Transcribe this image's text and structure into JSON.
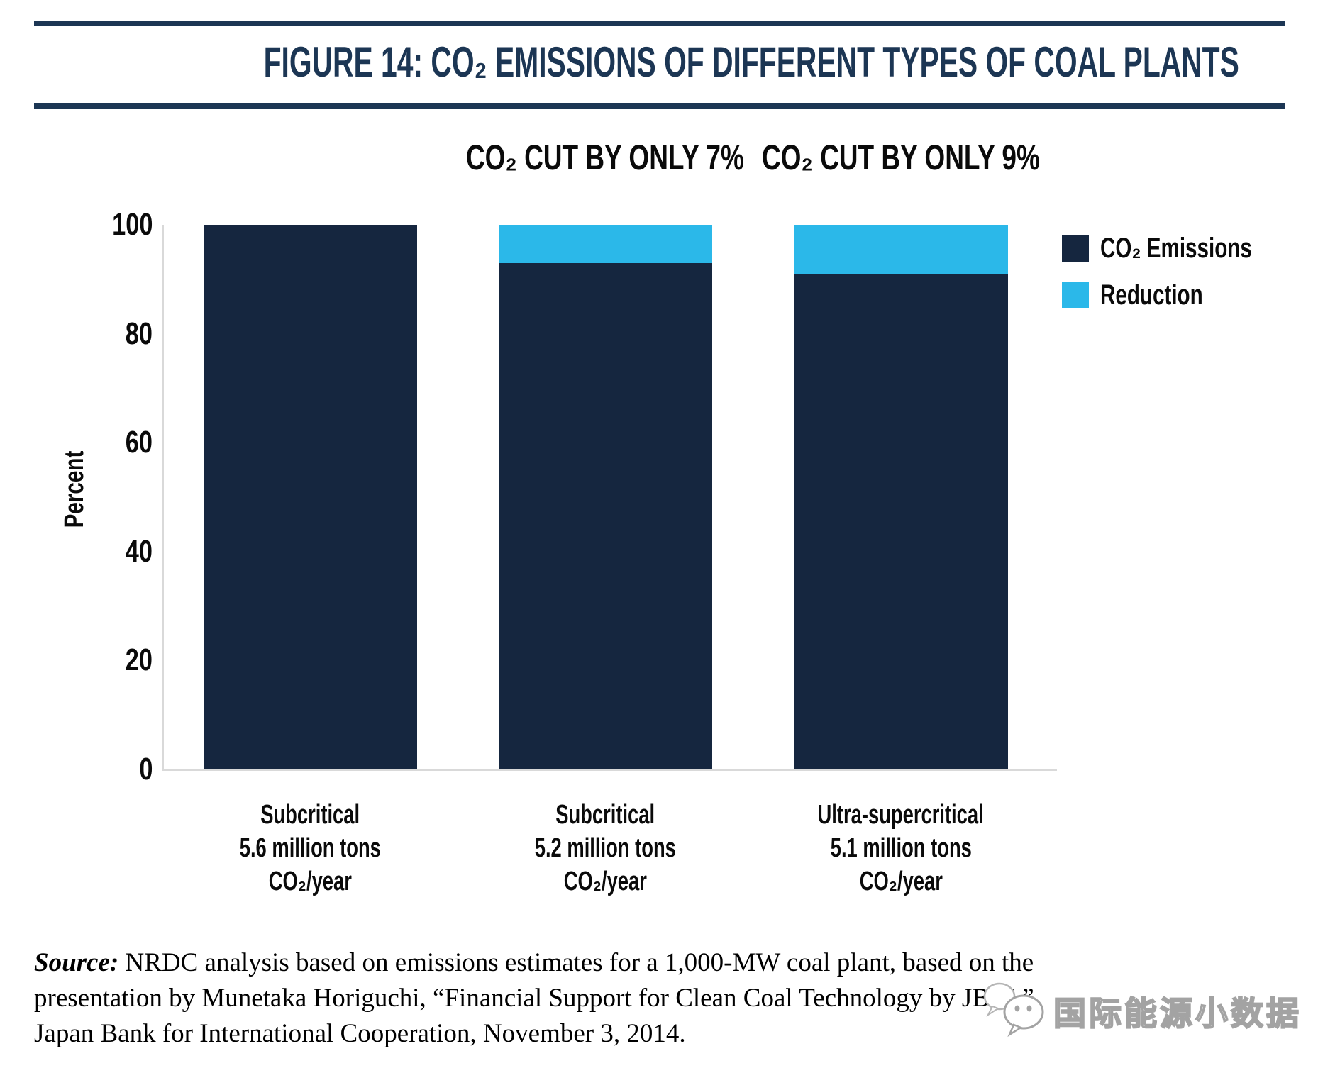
{
  "chart_data": {
    "type": "bar",
    "stacked": true,
    "title": "FIGURE 14: CO₂ EMISSIONS OF DIFFERENT TYPES OF COAL PLANTS",
    "ylabel": "Percent",
    "ylim": [
      0,
      100
    ],
    "yticks": [
      0,
      20,
      40,
      60,
      80,
      100
    ],
    "grid": false,
    "legend_position": "right",
    "categories": [
      [
        "Subcritical",
        "5.6 million tons",
        "CO₂/year"
      ],
      [
        "Subcritical",
        "5.2 million tons",
        "CO₂/year"
      ],
      [
        "Ultra-supercritical",
        "5.1 million tons",
        "CO₂/year"
      ]
    ],
    "series": [
      {
        "name": "CO₂ Emissions",
        "color": "#15263F",
        "values": [
          100,
          93,
          91
        ]
      },
      {
        "name": "Reduction",
        "color": "#2BB8E9",
        "values": [
          0,
          7,
          9
        ]
      }
    ],
    "annotations": [
      {
        "text": "CO₂ CUT BY ONLY 7%",
        "bar_index": 1
      },
      {
        "text": "CO₂ CUT BY ONLY 9%",
        "bar_index": 2
      }
    ]
  },
  "header": {
    "rule_color": "#1C3654"
  },
  "source": {
    "label": "Source:",
    "line1": "NRDC analysis based on emissions estimates for a 1,000-MW coal plant, based on the",
    "line2": "presentation by Munetaka Horiguchi, “Financial Support for Clean Coal Technology by JBIC,”",
    "line3": "Japan Bank for International Cooperation, November 3, 2014."
  },
  "watermark": {
    "text": "国际能源小数据",
    "icon": "wechat-icon"
  }
}
